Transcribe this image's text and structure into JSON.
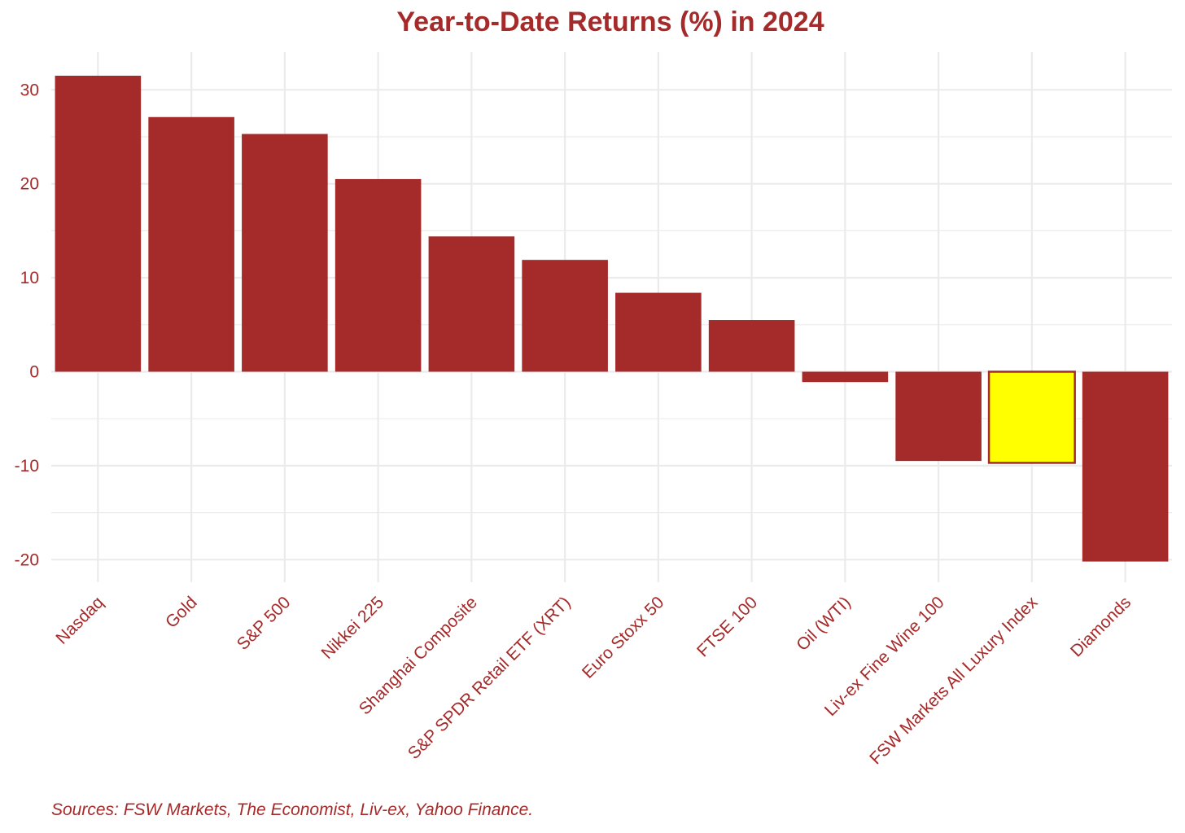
{
  "chart_data": {
    "type": "bar",
    "title": "Year-to-Date Returns (%) in 2024",
    "xlabel": "",
    "ylabel": "",
    "categories": [
      "Nasdaq",
      "Gold",
      "S&P 500",
      "Nikkei 225",
      "Shanghai Composite",
      "S&P SPDR Retail ETF (XRT)",
      "Euro Stoxx 50",
      "FTSE 100",
      "Oil (WTI)",
      "Liv-ex Fine Wine 100",
      "FSW Markets All Luxury Index",
      "Diamonds"
    ],
    "values": [
      31.5,
      27.1,
      25.3,
      20.5,
      14.4,
      11.9,
      8.4,
      5.5,
      -1.1,
      -9.5,
      -9.7,
      -20.2
    ],
    "highlight": "FSW Markets All Luxury Index",
    "ylim": [
      -23,
      34
    ],
    "yticks": [
      -20,
      -10,
      0,
      10,
      20,
      30
    ],
    "grid": true,
    "legend": "none",
    "caption": "Sources: FSW Markets, The Economist, Liv-ex, Yahoo Finance."
  },
  "colors": {
    "bar": "#a52a2a",
    "highlight_fill": "#ffff00",
    "highlight_border": "#a52a2a",
    "text": "#a52a2a",
    "grid": "#ebebeb"
  }
}
